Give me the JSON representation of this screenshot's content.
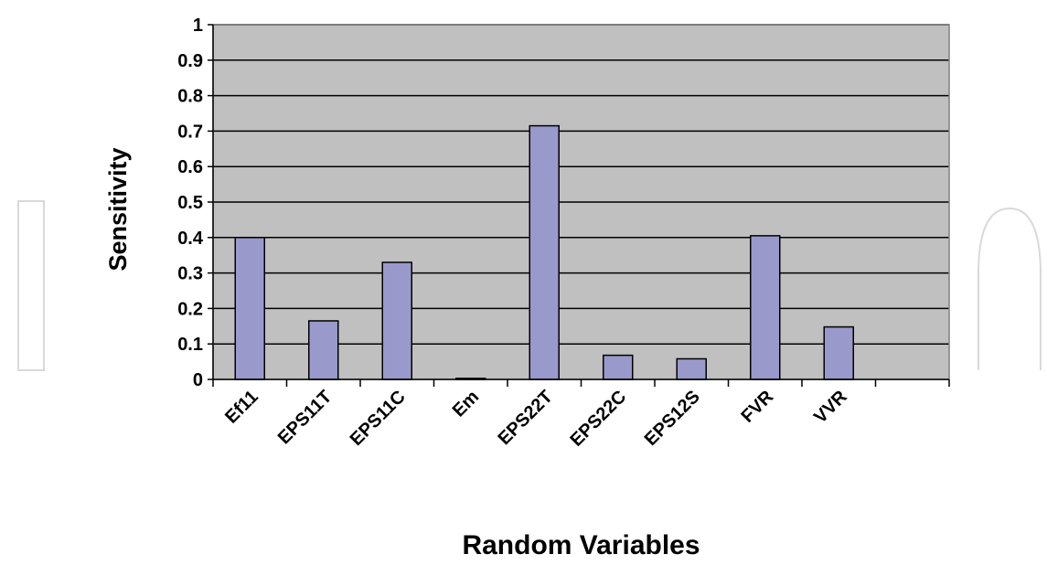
{
  "chart_data": {
    "type": "bar",
    "categories": [
      "Ef11",
      "EPS11T",
      "EPS11C",
      "Em",
      "EPS22T",
      "EPS22C",
      "EPS12S",
      "FVR",
      "VVR",
      ""
    ],
    "values": [
      0.4,
      0.165,
      0.33,
      0.003,
      0.715,
      0.068,
      0.058,
      0.405,
      0.148,
      null
    ],
    "ylabel": "Sensitivity",
    "xlabel": "Random Variables",
    "ylim": [
      0,
      1
    ],
    "yticks": [
      0,
      0.1,
      0.2,
      0.3,
      0.4,
      0.5,
      0.6,
      0.7,
      0.8,
      0.9,
      1
    ],
    "ytick_labels": [
      "0",
      "0.1",
      "0.2",
      "0.3",
      "0.4",
      "0.5",
      "0.6",
      "0.7",
      "0.8",
      "0.9",
      "1"
    ],
    "grid": true,
    "legend": "none",
    "colors": {
      "plot_background": "#c0c0c0",
      "bar_fill": "#9999cc",
      "bar_stroke": "#000000",
      "gridline": "#000000"
    }
  }
}
